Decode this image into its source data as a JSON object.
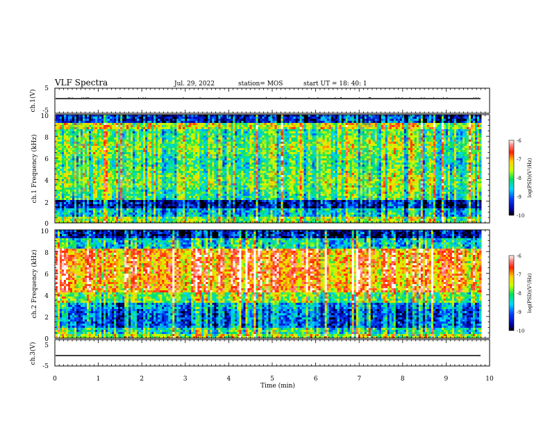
{
  "header": {
    "title": "VLF Spectra",
    "date": "Jul. 29, 2022",
    "station": "station= MOS",
    "start": "start UT = 18: 40: 1"
  },
  "chart_data": [
    {
      "type": "line",
      "panel": "ch1-waveform",
      "ylabel": "ch.1(V)",
      "ylim": [
        -5,
        5
      ],
      "yticks": [
        "5",
        "-5"
      ],
      "xlim": [
        0,
        10
      ],
      "series": [
        {
          "x": [
            0,
            9.8
          ],
          "values": [
            0,
            0
          ]
        }
      ]
    },
    {
      "type": "heatmap",
      "panel": "ch1-spectrogram",
      "ylabel": "ch.1 Frequency (kHz)",
      "ylim": [
        0,
        10
      ],
      "yticks": [
        "0",
        "2",
        "4",
        "6",
        "8",
        "10"
      ],
      "xlim": [
        0,
        10
      ],
      "colorbar": {
        "label": "log(PSD)(V²/Hz)",
        "ticks": [
          "-6",
          "-7",
          "-8",
          "-9",
          "-10"
        ],
        "range": [
          -10,
          -6
        ]
      }
    },
    {
      "type": "heatmap",
      "panel": "ch2-spectrogram",
      "ylabel": "ch.2 Frequency (kHz)",
      "ylim": [
        0,
        10
      ],
      "yticks": [
        "0",
        "2",
        "4",
        "6",
        "8",
        "10"
      ],
      "xlim": [
        0,
        10
      ],
      "colorbar": {
        "label": "log(PSD)(V²/Hz)",
        "ticks": [
          "-6",
          "-7",
          "-8",
          "-9",
          "-10"
        ],
        "range": [
          -10,
          -6
        ]
      }
    },
    {
      "type": "line",
      "panel": "ch3-waveform",
      "ylabel": "ch.3(V)",
      "ylim": [
        -5,
        5
      ],
      "yticks": [
        "5",
        "-5"
      ],
      "xlim": [
        0,
        10
      ],
      "xlabel": "Time (min)",
      "xticks": [
        "0",
        "1",
        "2",
        "3",
        "4",
        "5",
        "6",
        "7",
        "8",
        "9",
        "10"
      ],
      "series": [
        {
          "x": [
            0,
            9.8
          ],
          "values": [
            0,
            0
          ]
        }
      ]
    }
  ]
}
